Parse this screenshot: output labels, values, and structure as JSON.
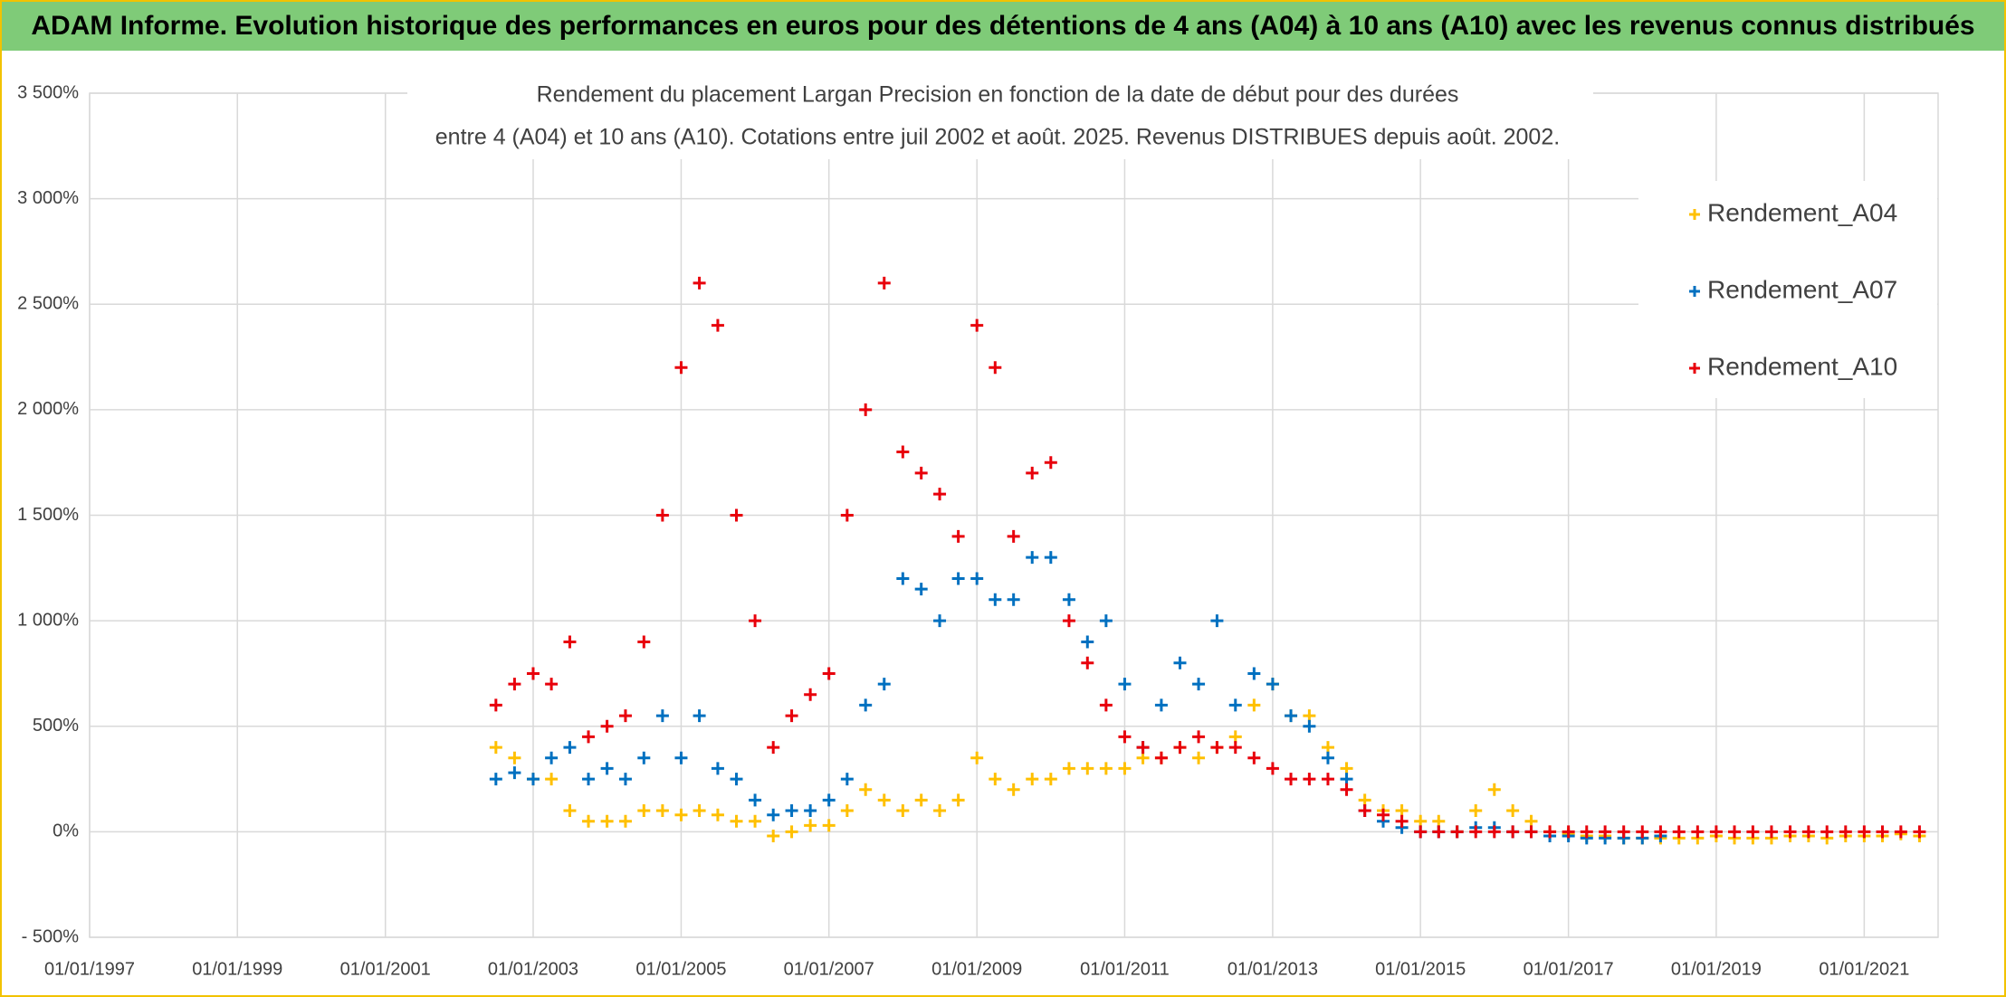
{
  "chart_data": {
    "type": "scatter",
    "title": "ADAM Informe. Evolution historique des performances en euros pour des détentions de 4 ans (A04) à 10 ans (A10) avec les revenus connus distribués",
    "subtitle": [
      "Rendement du placement Largan Precision  en fonction de la date de début pour des durées",
      "entre 4 (A04) et 10 ans (A10). Cotations entre juil 2002 et août. 2025. Revenus DISTRIBUES depuis août. 2002."
    ],
    "xlim": [
      "01/01/1997",
      "01/01/2022"
    ],
    "xticks": [
      "01/01/1997",
      "01/01/1999",
      "01/01/2001",
      "01/01/2003",
      "01/01/2005",
      "01/01/2007",
      "01/01/2009",
      "01/01/2011",
      "01/01/2013",
      "01/01/2015",
      "01/01/2017",
      "01/01/2019",
      "01/01/2021"
    ],
    "ylim": [
      -500,
      3500
    ],
    "yticks": [
      {
        "value": -500,
        "label": "- 500%"
      },
      {
        "value": 0,
        "label": "0%"
      },
      {
        "value": 500,
        "label": "500%"
      },
      {
        "value": 1000,
        "label": "1 000%"
      },
      {
        "value": 1500,
        "label": "1 500%"
      },
      {
        "value": 2000,
        "label": "2 000%"
      },
      {
        "value": 2500,
        "label": "2 500%"
      },
      {
        "value": 3000,
        "label": "3 000%"
      },
      {
        "value": 3500,
        "label": "3 500%"
      }
    ],
    "grid": true,
    "legend": "top-right",
    "x": [
      "01/07/2002",
      "01/10/2002",
      "01/01/2003",
      "01/04/2003",
      "01/07/2003",
      "01/10/2003",
      "01/01/2004",
      "01/04/2004",
      "01/07/2004",
      "01/10/2004",
      "01/01/2005",
      "01/04/2005",
      "01/07/2005",
      "01/10/2005",
      "01/01/2006",
      "01/04/2006",
      "01/07/2006",
      "01/10/2006",
      "01/01/2007",
      "01/04/2007",
      "01/07/2007",
      "01/10/2007",
      "01/01/2008",
      "01/04/2008",
      "01/07/2008",
      "01/10/2008",
      "01/01/2009",
      "01/04/2009",
      "01/07/2009",
      "01/10/2009",
      "01/01/2010",
      "01/04/2010",
      "01/07/2010",
      "01/10/2010",
      "01/01/2011",
      "01/04/2011",
      "01/07/2011",
      "01/10/2011",
      "01/01/2012",
      "01/04/2012",
      "01/07/2012",
      "01/10/2012",
      "01/01/2013",
      "01/04/2013",
      "01/07/2013",
      "01/10/2013",
      "01/01/2014",
      "01/04/2014",
      "01/07/2014",
      "01/10/2014",
      "01/01/2015",
      "01/04/2015",
      "01/07/2015",
      "01/10/2015",
      "01/01/2016",
      "01/04/2016",
      "01/07/2016",
      "01/10/2016",
      "01/01/2017",
      "01/04/2017",
      "01/07/2017",
      "01/10/2017",
      "01/01/2018",
      "01/04/2018",
      "01/07/2018",
      "01/10/2018",
      "01/01/2019",
      "01/04/2019",
      "01/07/2019",
      "01/10/2019",
      "01/01/2020",
      "01/04/2020",
      "01/07/2020",
      "01/10/2020",
      "01/01/2021",
      "01/04/2021",
      "01/07/2021",
      "01/10/2021"
    ],
    "series": [
      {
        "name": "Rendement_A04",
        "color": "#FFC000",
        "values": [
          400,
          350,
          250,
          250,
          100,
          50,
          50,
          50,
          100,
          100,
          80,
          100,
          80,
          50,
          50,
          -20,
          0,
          30,
          30,
          100,
          200,
          150,
          100,
          150,
          100,
          150,
          350,
          250,
          200,
          250,
          250,
          300,
          300,
          300,
          300,
          350,
          350,
          400,
          350,
          400,
          450,
          600,
          700,
          550,
          550,
          400,
          300,
          150,
          100,
          100,
          50,
          50,
          0,
          100,
          200,
          100,
          50,
          0,
          -10,
          -20,
          -20,
          -30,
          -30,
          -30,
          -30,
          -30,
          -20,
          -30,
          -30,
          -30,
          -20,
          -20,
          -30,
          -20,
          -20,
          -20,
          -10,
          -20
        ]
      },
      {
        "name": "Rendement_A07",
        "color": "#0070C0",
        "values": [
          250,
          280,
          250,
          350,
          400,
          250,
          300,
          250,
          350,
          550,
          350,
          550,
          300,
          250,
          150,
          80,
          100,
          100,
          150,
          250,
          600,
          700,
          1200,
          1150,
          1000,
          1200,
          1200,
          1100,
          1100,
          1300,
          1300,
          1100,
          900,
          1000,
          700,
          400,
          600,
          800,
          700,
          1000,
          600,
          750,
          700,
          550,
          500,
          350,
          250,
          100,
          50,
          20,
          0,
          0,
          0,
          20,
          20,
          0,
          0,
          -20,
          -20,
          -30,
          -30,
          -30,
          -30,
          -20,
          null,
          null,
          null,
          null,
          null,
          null,
          null,
          null,
          null,
          null,
          null,
          null,
          null,
          null
        ]
      },
      {
        "name": "Rendement_A10",
        "color": "#E8000B",
        "values": [
          600,
          700,
          750,
          700,
          900,
          450,
          500,
          550,
          900,
          1500,
          2200,
          2600,
          2400,
          1500,
          1000,
          400,
          550,
          650,
          750,
          1500,
          2000,
          2600,
          1800,
          1700,
          1600,
          1400,
          2400,
          2200,
          1400,
          1700,
          1750,
          1000,
          800,
          600,
          450,
          400,
          350,
          400,
          450,
          400,
          400,
          350,
          300,
          250,
          250,
          250,
          200,
          100,
          80,
          50,
          0,
          0,
          0,
          0,
          0,
          0,
          0,
          0,
          0,
          0,
          0,
          0,
          0,
          0,
          0,
          0,
          0,
          0,
          0,
          0,
          0,
          0,
          0,
          0,
          0,
          0,
          0,
          0
        ]
      }
    ]
  }
}
